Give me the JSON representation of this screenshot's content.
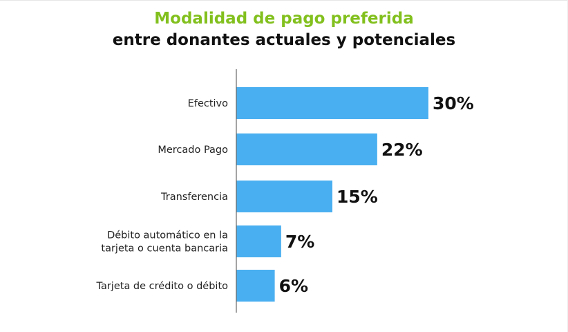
{
  "colors": {
    "title_accent": "#82c01e",
    "title_main": "#111111",
    "bar": "#4aaff0",
    "axis": "#666666"
  },
  "chart_data": {
    "type": "bar",
    "orientation": "horizontal",
    "title": "Modalidad de pago preferida",
    "subtitle": "entre donantes actuales y potenciales",
    "categories": [
      [
        "Efectivo"
      ],
      [
        "Mercado Pago"
      ],
      [
        "Transferencia"
      ],
      [
        "Débito automático en la",
        "tarjeta o cuenta bancaria"
      ],
      [
        "Tarjeta de crédito o débito"
      ]
    ],
    "values": [
      30,
      22,
      15,
      7,
      6
    ],
    "value_labels": [
      "30%",
      "22%",
      "15%",
      "7%",
      "6%"
    ],
    "xlim": [
      0,
      30
    ],
    "grid": false,
    "legend": "none"
  }
}
